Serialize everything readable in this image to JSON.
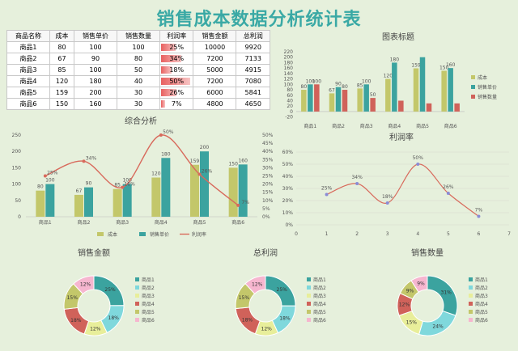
{
  "page_title": "销售成本数据分析统计表",
  "table": {
    "headers": [
      "商品名称",
      "成本",
      "销售单价",
      "销售数量",
      "利润率",
      "销售金额",
      "总利润"
    ],
    "rows": [
      [
        "商品1",
        "80",
        "100",
        "100",
        "25%",
        "10000",
        "9920"
      ],
      [
        "商品2",
        "67",
        "90",
        "80",
        "34%",
        "7200",
        "7133"
      ],
      [
        "商品3",
        "85",
        "100",
        "50",
        "18%",
        "5000",
        "4915"
      ],
      [
        "商品4",
        "120",
        "180",
        "40",
        "50%",
        "7200",
        "7080"
      ],
      [
        "商品5",
        "159",
        "200",
        "30",
        "26%",
        "6000",
        "5841"
      ],
      [
        "商品6",
        "150",
        "160",
        "30",
        "7%",
        "4800",
        "4650"
      ]
    ],
    "rate_values": [
      0.25,
      0.34,
      0.18,
      0.5,
      0.26,
      0.07
    ]
  },
  "colors": {
    "cost": "#c3c76a",
    "price": "#3ba39f",
    "qty": "#d0625a",
    "rate": "#d86a5c",
    "donut": [
      "#3ba39f",
      "#7fd8dc",
      "#e8ee9a",
      "#d0625a",
      "#c3c76a",
      "#f6b6cf"
    ]
  },
  "chart_data": [
    {
      "type": "bar",
      "title": "图表标题",
      "categories": [
        "商品1",
        "商品2",
        "商品3",
        "商品4",
        "商品5",
        "商品6"
      ],
      "series": [
        {
          "name": "成本",
          "values": [
            80,
            67,
            85,
            120,
            159,
            150
          ]
        },
        {
          "name": "销售单价",
          "values": [
            100,
            90,
            100,
            180,
            200,
            160
          ]
        },
        {
          "name": "销售数量",
          "values": [
            100,
            80,
            50,
            40,
            30,
            30
          ]
        }
      ],
      "data_labels": [
        [
          "80",
          "100",
          "100"
        ],
        [
          "67",
          "90",
          "80"
        ],
        [
          "85",
          "100",
          "50"
        ],
        [
          "120",
          "180",
          ""
        ],
        [
          "159",
          "",
          ""
        ],
        [
          "150",
          "160",
          ""
        ]
      ],
      "ylim": [
        -30,
        220
      ],
      "yticks": [
        "220",
        "200",
        "180",
        "160",
        "140",
        "120",
        "100",
        "80",
        "60",
        "40",
        "20",
        "0",
        "-20"
      ],
      "legend": "right"
    },
    {
      "type": "bar",
      "title": "综合分析",
      "categories": [
        "商品1",
        "商品2",
        "商品3",
        "商品4",
        "商品5",
        "商品6"
      ],
      "series": [
        {
          "name": "成本",
          "values": [
            80,
            67,
            85,
            120,
            159,
            150
          ]
        },
        {
          "name": "销售单价",
          "values": [
            100,
            90,
            100,
            180,
            200,
            160
          ]
        },
        {
          "name": "利润率",
          "values": [
            0.25,
            0.34,
            0.18,
            0.5,
            0.26,
            0.07
          ],
          "axis": "secondary",
          "type": "line"
        }
      ],
      "bar_labels": [
        "80",
        "100",
        "67",
        "90",
        "85",
        "100",
        "120",
        "180",
        "159",
        "200",
        "150",
        "160"
      ],
      "rate_labels": [
        "25%",
        "34%",
        "18%",
        "50%",
        "26%",
        "7%"
      ],
      "ylim": [
        0,
        250
      ],
      "yticks": [
        "250",
        "200",
        "150",
        "100",
        "50",
        "0"
      ],
      "y2lim": [
        0,
        0.5
      ],
      "y2ticks": [
        "50%",
        "45%",
        "40%",
        "35%",
        "30%",
        "25%",
        "20%",
        "15%",
        "10%",
        "5%",
        "0%"
      ],
      "legend": "bottom"
    },
    {
      "type": "line",
      "title": "利润率",
      "x": [
        1,
        2,
        3,
        4,
        5,
        6
      ],
      "values": [
        0.25,
        0.34,
        0.18,
        0.5,
        0.26,
        0.07
      ],
      "point_labels": [
        "25%",
        "34%",
        "18%",
        "50%",
        "26%",
        "7%"
      ],
      "xlim": [
        0,
        7
      ],
      "ylim": [
        0,
        0.6
      ],
      "xticks": [
        "0",
        "1",
        "2",
        "3",
        "4",
        "5",
        "6",
        "7"
      ],
      "yticks": [
        "60%",
        "50%",
        "40%",
        "30%",
        "20%",
        "10%",
        "0%"
      ]
    },
    {
      "type": "pie",
      "title": "销售金额",
      "labels": [
        "商品1",
        "商品2",
        "商品3",
        "商品4",
        "商品5",
        "商品6"
      ],
      "values": [
        10000,
        7200,
        5000,
        7200,
        6000,
        4800
      ],
      "pct_labels": [
        "25%",
        "18%",
        "12%",
        "18%",
        "15%",
        "12%"
      ],
      "legend": "right"
    },
    {
      "type": "pie",
      "title": "总利润",
      "labels": [
        "商品1",
        "商品2",
        "商品3",
        "商品4",
        "商品5",
        "商品6"
      ],
      "values": [
        9920,
        7133,
        4915,
        7080,
        5841,
        4650
      ],
      "pct_labels": [
        "25%",
        "18%",
        "12%",
        "18%",
        "15%",
        "12%"
      ],
      "legend": "right"
    },
    {
      "type": "pie",
      "title": "销售数量",
      "labels": [
        "商品1",
        "商品2",
        "商品3",
        "商品4",
        "商品5",
        "商品6"
      ],
      "values": [
        100,
        80,
        50,
        40,
        30,
        30
      ],
      "pct_labels": [
        "31%",
        "24%",
        "15%",
        "12%",
        "9%",
        "9%"
      ],
      "legend": "right"
    }
  ]
}
